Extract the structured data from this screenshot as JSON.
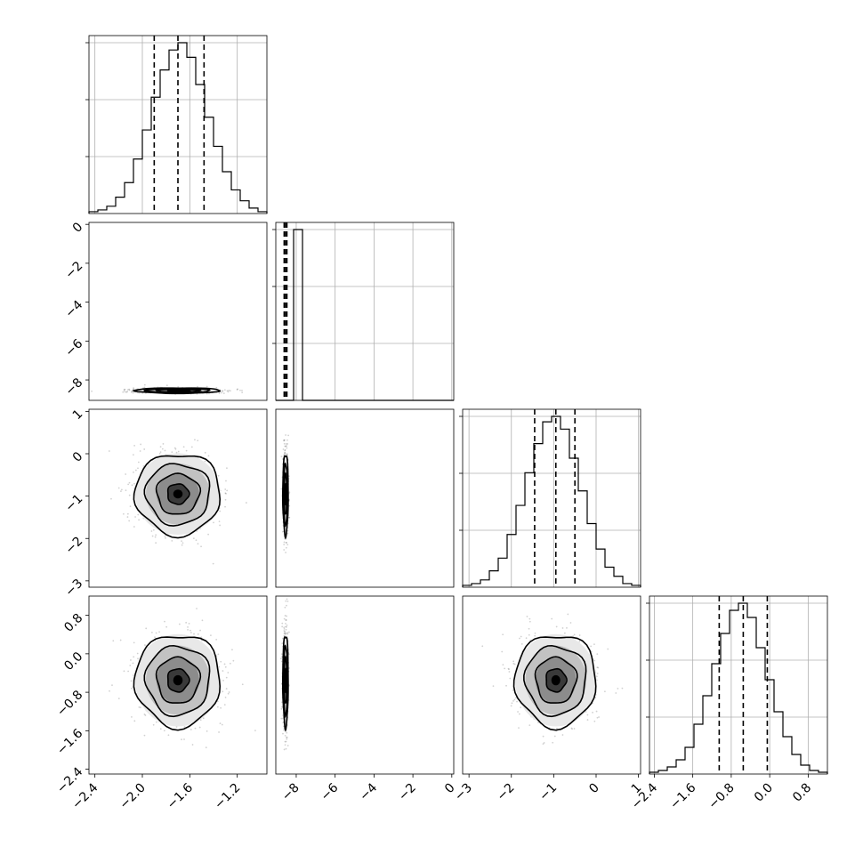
{
  "chart_data": {
    "type": "corner",
    "parameters": [
      {
        "index": 0,
        "range": [
          -2.45,
          -0.95
        ],
        "median": -1.7,
        "q16": -1.9,
        "q84": -1.48,
        "ticks": [
          -2.4,
          -2.0,
          -1.6,
          -1.2
        ],
        "tick_labels": [
          "−2.4",
          "−2.0",
          "−1.6",
          "−1.2"
        ]
      },
      {
        "index": 1,
        "range": [
          -9.05,
          0.1
        ],
        "median": -8.55,
        "q16": -8.62,
        "q84": -8.48,
        "ticks": [
          -8,
          -6,
          -4,
          -2,
          0
        ],
        "tick_labels": [
          "−8",
          "−6",
          "−4",
          "−2",
          "0"
        ]
      },
      {
        "index": 2,
        "range": [
          -3.15,
          1.05
        ],
        "median": -0.95,
        "q16": -1.45,
        "q84": -0.5,
        "ticks": [
          -3,
          -2,
          -1,
          0,
          1
        ],
        "tick_labels": [
          "−3",
          "−2",
          "−1",
          "0",
          "1"
        ]
      },
      {
        "index": 3,
        "range": [
          -2.5,
          1.2
        ],
        "median": -0.55,
        "q16": -1.05,
        "q84": -0.05,
        "ticks": [
          -2.4,
          -1.6,
          -0.8,
          0.0,
          0.8
        ],
        "tick_labels": [
          "−2.4",
          "−1.6",
          "−0.8",
          "0.0",
          "0.8"
        ]
      }
    ],
    "histograms": [
      {
        "param": 0,
        "values": [
          1,
          2,
          4,
          9,
          17,
          30,
          46,
          64,
          79,
          90,
          94,
          86,
          71,
          53,
          37,
          23,
          13,
          7,
          3,
          1
        ]
      },
      {
        "param": 1,
        "values": [
          0,
          0,
          98,
          0,
          0,
          0,
          0,
          0,
          0,
          0,
          0,
          0,
          0,
          0,
          0,
          0,
          0,
          0,
          0,
          0
        ]
      },
      {
        "param": 2,
        "values": [
          1,
          2,
          4,
          9,
          16,
          29,
          45,
          63,
          79,
          91,
          94,
          87,
          71,
          53,
          35,
          21,
          11,
          6,
          2,
          1
        ]
      },
      {
        "param": 3,
        "values": [
          1,
          2,
          4,
          8,
          15,
          28,
          44,
          62,
          79,
          92,
          96,
          88,
          71,
          53,
          35,
          21,
          11,
          5,
          2,
          1
        ]
      }
    ],
    "hist_grid": true,
    "scatter_panels": [
      {
        "x_param": 0,
        "y_param": 1,
        "sigma_x": 0.18,
        "sigma_y": 0.07
      },
      {
        "x_param": 0,
        "y_param": 2,
        "sigma_x": 0.18,
        "sigma_y": 0.48
      },
      {
        "x_param": 1,
        "y_param": 2,
        "sigma_x": 0.07,
        "sigma_y": 0.48
      },
      {
        "x_param": 0,
        "y_param": 3,
        "sigma_x": 0.18,
        "sigma_y": 0.48
      },
      {
        "x_param": 1,
        "y_param": 3,
        "sigma_x": 0.07,
        "sigma_y": 0.48
      },
      {
        "x_param": 2,
        "y_param": 3,
        "sigma_x": 0.48,
        "sigma_y": 0.48
      }
    ],
    "contour_levels_sigma": [
      0.5,
      1.0,
      1.5,
      2.0
    ],
    "title": "",
    "legend": "none"
  }
}
